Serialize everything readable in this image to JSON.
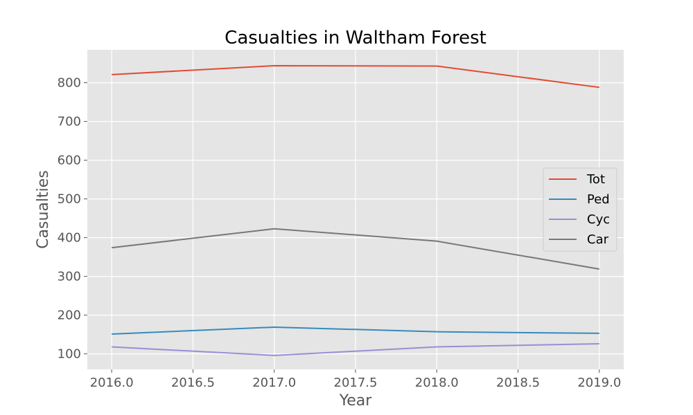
{
  "chart_data": {
    "type": "line",
    "title": "Casualties in Waltham Forest",
    "xlabel": "Year",
    "ylabel": "Casualties",
    "x": [
      2016,
      2017,
      2018,
      2019
    ],
    "xticks": [
      "2016.0",
      "2016.5",
      "2017.0",
      "2017.5",
      "2018.0",
      "2018.5",
      "2019.0"
    ],
    "yticks": [
      "100",
      "200",
      "300",
      "400",
      "500",
      "600",
      "700",
      "800"
    ],
    "xlim": [
      2015.85,
      2019.15
    ],
    "ylim": [
      60,
      885
    ],
    "grid": true,
    "legend_position": "center-right",
    "series": [
      {
        "name": "Tot",
        "color": "#E24A33",
        "values": [
          821,
          844,
          843,
          788
        ]
      },
      {
        "name": "Ped",
        "color": "#348ABD",
        "values": [
          151,
          169,
          157,
          153
        ]
      },
      {
        "name": "Cyc",
        "color": "#988ED5",
        "values": [
          118,
          96,
          118,
          126
        ]
      },
      {
        "name": "Car",
        "color": "#777777",
        "values": [
          374,
          423,
          391,
          319
        ]
      }
    ]
  }
}
